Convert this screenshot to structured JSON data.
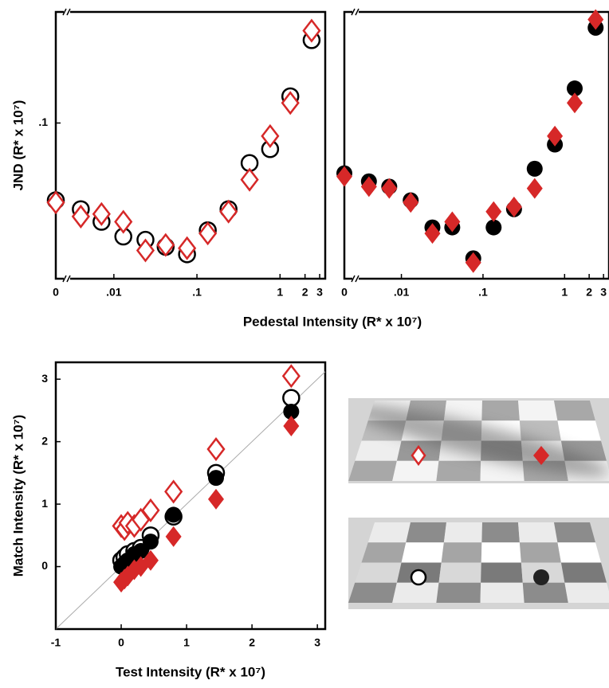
{
  "chart_data": [
    {
      "type": "scatter",
      "xscale": "log",
      "yscale": "log",
      "xlabel": "Pedestal Intensity (R* x 10⁷)",
      "ylabel": "JND (R* x 10⁷)",
      "x": [
        0,
        0.004,
        0.0071,
        0.013,
        0.024,
        0.042,
        0.076,
        0.135,
        0.24,
        0.43,
        0.76,
        1.33,
        2.4
      ],
      "xlim": [
        0.002,
        3.5
      ],
      "ylim": [
        0.0166,
        0.36
      ],
      "xticks": [
        0,
        {
          "value": 0.01,
          "label": ".01"
        },
        {
          "value": 0.1,
          "label": ".1"
        },
        1,
        2,
        3
      ],
      "yticks": [
        {
          "value": 0.1,
          "label": ".1"
        }
      ],
      "series": [
        {
          "color": "#000000",
          "marker": "circle",
          "filled": false,
          "values": [
            0.041,
            0.037,
            0.032,
            0.027,
            0.026,
            0.024,
            0.022,
            0.029,
            0.037,
            0.063,
            0.074,
            0.136,
            0.26
          ]
        },
        {
          "color": "#d62828",
          "marker": "diamond",
          "filled": false,
          "values": [
            0.04,
            0.034,
            0.035,
            0.032,
            0.023,
            0.0245,
            0.0236,
            0.028,
            0.036,
            0.052,
            0.086,
            0.126,
            0.29
          ]
        }
      ]
    },
    {
      "type": "scatter",
      "xscale": "log",
      "yscale": "log",
      "x": [
        0,
        0.004,
        0.0071,
        0.013,
        0.024,
        0.042,
        0.076,
        0.135,
        0.24,
        0.43,
        0.76,
        1.33,
        2.4
      ],
      "xlim": [
        0.002,
        3.5
      ],
      "ylim": [
        0.0166,
        0.36
      ],
      "xticks": [
        0,
        {
          "value": 0.01,
          "label": ".01"
        },
        {
          "value": 0.1,
          "label": ".1"
        },
        1,
        2,
        3
      ],
      "series": [
        {
          "color": "#000000",
          "marker": "circle",
          "filled": true,
          "values": [
            0.056,
            0.051,
            0.048,
            0.041,
            0.03,
            0.03,
            0.021,
            0.03,
            0.037,
            0.059,
            0.078,
            0.149,
            0.3
          ]
        },
        {
          "color": "#d62828",
          "marker": "diamond",
          "filled": true,
          "values": [
            0.054,
            0.048,
            0.047,
            0.04,
            0.028,
            0.032,
            0.02,
            0.036,
            0.038,
            0.047,
            0.086,
            0.126,
            0.33
          ]
        }
      ]
    },
    {
      "type": "scatter",
      "xscale": "linear",
      "yscale": "linear",
      "xlabel": "Test Intensity (R* x 10⁷)",
      "ylabel": "Match Intensity (R* x 10⁷)",
      "xlim": [
        -1,
        3.12
      ],
      "ylim": [
        -1,
        3.27
      ],
      "xticks": [
        -1,
        0,
        1,
        2,
        3
      ],
      "yticks": [
        0,
        1,
        2,
        3
      ],
      "identity_line": true,
      "series": [
        {
          "color": "#000000",
          "marker": "circle",
          "filled": false,
          "x": [
            0,
            0.05,
            0.1,
            0.2,
            0.3,
            0.45,
            0.8,
            1.45,
            2.6
          ],
          "values": [
            0.1,
            0.15,
            0.2,
            0.25,
            0.3,
            0.5,
            0.8,
            1.5,
            2.7
          ]
        },
        {
          "color": "#000000",
          "marker": "circle",
          "filled": true,
          "x": [
            0,
            0.05,
            0.1,
            0.2,
            0.3,
            0.45,
            0.8,
            1.45,
            2.6
          ],
          "values": [
            0,
            0.05,
            0.1,
            0.2,
            0.25,
            0.4,
            0.83,
            1.42,
            2.48
          ]
        },
        {
          "color": "#d62828",
          "marker": "diamond",
          "filled": false,
          "x": [
            0,
            0.05,
            0.1,
            0.2,
            0.3,
            0.45,
            0.8,
            1.45,
            2.6
          ],
          "values": [
            0.65,
            0.6,
            0.7,
            0.65,
            0.75,
            0.9,
            1.2,
            1.88,
            3.05
          ]
        },
        {
          "color": "#d62828",
          "marker": "diamond",
          "filled": true,
          "x": [
            0,
            0.05,
            0.1,
            0.2,
            0.3,
            0.45,
            0.8,
            1.45,
            2.6
          ],
          "values": [
            -0.25,
            -0.2,
            -0.15,
            -0.05,
            0,
            0.1,
            0.48,
            1.08,
            2.25
          ]
        }
      ]
    }
  ]
}
